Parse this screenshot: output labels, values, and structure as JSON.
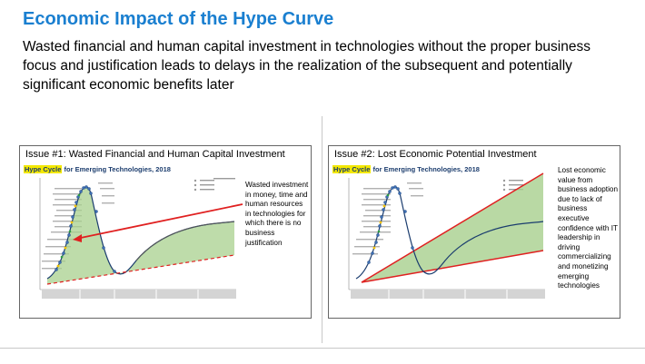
{
  "page": {
    "title": "Economic Impact of the Hype Curve",
    "subtitle": "Wasted financial and human capital investment in technologies without the proper business focus and justification leads to delays in the realization of the subsequent and potentially significant economic benefits later"
  },
  "panels": [
    {
      "title": "Issue #1:  Wasted Financial and Human Capital Investment",
      "chart_title_highlight": "Hype Cycle",
      "chart_title_rest": " for Emerging Technologies, 2018",
      "annotation": "Wasted investment in money, time and human resources in technologies for which there is no business justification"
    },
    {
      "title": "Issue #2:  Lost Economic Potential Investment",
      "chart_title_highlight": "Hype Cycle",
      "chart_title_rest": " for Emerging Technologies, 2018",
      "annotation": "Lost economic value from business adoption due to lack of business executive confidence with IT leadership in driving commercializing and monetizing emerging technologies"
    }
  ],
  "colors": {
    "title": "#1a7fd0",
    "curve": "#1a3c6e",
    "fill": "#a8d08d",
    "arrow": "#e02020",
    "highlight": "#f3e800"
  }
}
